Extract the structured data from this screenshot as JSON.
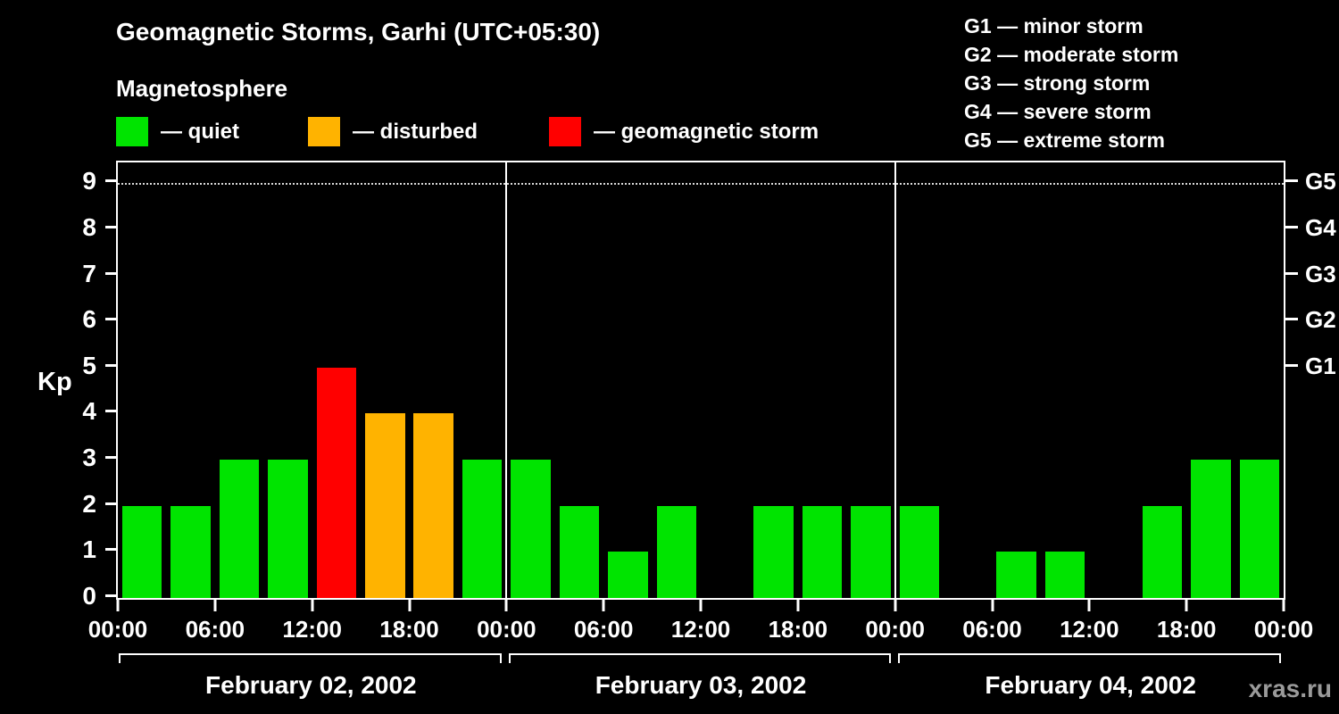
{
  "header": {
    "title": "Geomagnetic Storms, Garhi (UTC+05:30)",
    "subtitle": "Magnetosphere"
  },
  "legend": {
    "items": [
      {
        "name": "quiet",
        "label": "— quiet",
        "color": "#00e400"
      },
      {
        "name": "disturbed",
        "label": "— disturbed",
        "color": "#ffb300"
      },
      {
        "name": "storm",
        "label": "— geomagnetic storm",
        "color": "#ff0000"
      }
    ]
  },
  "g_scale_legend": {
    "lines": [
      "G1 — minor storm",
      "G2 — moderate storm",
      "G3 — strong storm",
      "G4 — severe storm",
      "G5 — extreme storm"
    ]
  },
  "watermark": "xras.ru",
  "chart_data": {
    "type": "bar",
    "title": "Geomagnetic Storms, Garhi (UTC+05:30)",
    "ylabel": "Kp",
    "ylim": [
      0,
      9.45
    ],
    "y_ticks": [
      0,
      1,
      2,
      3,
      4,
      5,
      6,
      7,
      8,
      9
    ],
    "right_axis": {
      "labels": [
        "G1",
        "G2",
        "G3",
        "G4",
        "G5"
      ],
      "kp_positions": [
        5,
        6,
        7,
        8,
        9
      ]
    },
    "x_tick_labels": [
      "00:00",
      "06:00",
      "12:00",
      "18:00",
      "00:00",
      "06:00",
      "12:00",
      "18:00",
      "00:00",
      "06:00",
      "12:00",
      "18:00",
      "00:00"
    ],
    "interval_hours": 3,
    "days": [
      {
        "date": "February 02, 2002",
        "kp_values": [
          2,
          2,
          3,
          3,
          5,
          4,
          4,
          3
        ]
      },
      {
        "date": "February 03, 2002",
        "kp_values": [
          3,
          2,
          1,
          2,
          null,
          2,
          2,
          2
        ]
      },
      {
        "date": "February 04, 2002",
        "kp_values": [
          2,
          null,
          1,
          1,
          null,
          2,
          3,
          3
        ]
      }
    ],
    "colors": {
      "quiet": "#00e400",
      "disturbed": "#ffb300",
      "storm": "#ff0000"
    },
    "color_rule": "kp<=3 quiet(green), kp=4 disturbed(orange), kp>=5 storm(red)",
    "grid": "single dotted horizontal line at Kp 9",
    "legend_position": "top"
  }
}
